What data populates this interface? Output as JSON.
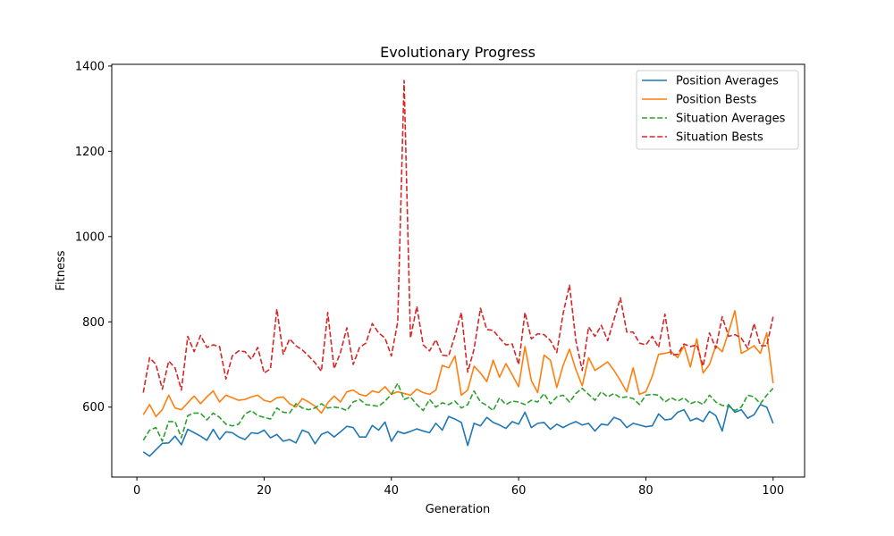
{
  "chart_data": {
    "type": "line",
    "title": "Evolutionary Progress",
    "xlabel": "Generation",
    "ylabel": "Fitness",
    "xlim": [
      -3.95,
      104.95
    ],
    "ylim": [
      436,
      1404
    ],
    "xticks": [
      0,
      20,
      40,
      60,
      80,
      100
    ],
    "yticks": [
      600,
      800,
      1000,
      1200,
      1400
    ],
    "xtick_labels": [
      "0",
      "20",
      "40",
      "60",
      "80",
      "100"
    ],
    "ytick_labels": [
      "600",
      "800",
      "1000",
      "1200",
      "1400"
    ],
    "grid": false,
    "legend_position": "top-right",
    "x": [
      1,
      2,
      3,
      4,
      5,
      6,
      7,
      8,
      9,
      10,
      11,
      12,
      13,
      14,
      15,
      16,
      17,
      18,
      19,
      20,
      21,
      22,
      23,
      24,
      25,
      26,
      27,
      28,
      29,
      30,
      31,
      32,
      33,
      34,
      35,
      36,
      37,
      38,
      39,
      40,
      41,
      42,
      43,
      44,
      45,
      46,
      47,
      48,
      49,
      50,
      51,
      52,
      53,
      54,
      55,
      56,
      57,
      58,
      59,
      60,
      61,
      62,
      63,
      64,
      65,
      66,
      67,
      68,
      69,
      70,
      71,
      72,
      73,
      74,
      75,
      76,
      77,
      78,
      79,
      80,
      81,
      82,
      83,
      84,
      85,
      86,
      87,
      88,
      89,
      90,
      91,
      92,
      93,
      94,
      95,
      96,
      97,
      98,
      99,
      100
    ],
    "series": [
      {
        "name": "Position Averages",
        "color": "#1f77b4",
        "dash": "solid",
        "values": [
          495,
          485,
          500,
          515,
          516,
          532,
          512,
          548,
          540,
          532,
          522,
          548,
          524,
          542,
          540,
          530,
          524,
          540,
          538,
          546,
          528,
          536,
          520,
          524,
          516,
          546,
          540,
          514,
          536,
          542,
          530,
          542,
          555,
          552,
          530,
          530,
          557,
          546,
          565,
          520,
          543,
          538,
          543,
          549,
          544,
          540,
          562,
          546,
          578,
          572,
          564,
          510,
          562,
          556,
          576,
          564,
          558,
          550,
          566,
          560,
          588,
          552,
          562,
          564,
          548,
          560,
          552,
          560,
          566,
          558,
          562,
          544,
          560,
          558,
          576,
          570,
          552,
          562,
          558,
          554,
          556,
          584,
          570,
          572,
          588,
          594,
          568,
          574,
          566,
          590,
          580,
          544,
          606,
          588,
          594,
          574,
          582,
          606,
          600,
          562
        ]
      },
      {
        "name": "Position Bests",
        "color": "#ff7f0e",
        "dash": "solid",
        "values": [
          582,
          606,
          578,
          594,
          628,
          598,
          594,
          610,
          626,
          608,
          624,
          638,
          612,
          628,
          622,
          616,
          618,
          624,
          628,
          616,
          612,
          622,
          624,
          608,
          600,
          620,
          612,
          602,
          586,
          610,
          626,
          612,
          636,
          640,
          630,
          626,
          638,
          634,
          648,
          630,
          636,
          632,
          628,
          642,
          634,
          630,
          640,
          698,
          692,
          720,
          628,
          640,
          696,
          680,
          660,
          710,
          670,
          702,
          676,
          648,
          742,
          662,
          634,
          722,
          710,
          646,
          698,
          736,
          688,
          650,
          716,
          686,
          696,
          706,
          686,
          662,
          636,
          692,
          630,
          636,
          672,
          724,
          726,
          730,
          716,
          744,
          694,
          760,
          680,
          700,
          744,
          730,
          776,
          826,
          726,
          734,
          744,
          726,
          774,
          656
        ]
      },
      {
        "name": "Situation Averages",
        "color": "#2ca02c",
        "dash": "dashed",
        "values": [
          522,
          546,
          552,
          520,
          566,
          566,
          528,
          580,
          586,
          586,
          570,
          586,
          576,
          560,
          556,
          560,
          584,
          592,
          580,
          576,
          572,
          598,
          588,
          586,
          608,
          598,
          594,
          598,
          608,
          598,
          600,
          598,
          592,
          612,
          618,
          606,
          604,
          602,
          614,
          630,
          656,
          618,
          624,
          606,
          592,
          618,
          600,
          610,
          606,
          614,
          598,
          606,
          638,
          612,
          604,
          592,
          622,
          606,
          614,
          612,
          606,
          616,
          612,
          632,
          608,
          624,
          628,
          612,
          632,
          644,
          630,
          616,
          636,
          624,
          632,
          622,
          624,
          620,
          606,
          628,
          630,
          628,
          612,
          622,
          614,
          622,
          608,
          614,
          606,
          628,
          612,
          604,
          602,
          592,
          600,
          628,
          624,
          608,
          628,
          644
        ]
      },
      {
        "name": "Situation Bests",
        "color": "#d62728",
        "dash": "dashed",
        "values": [
          634,
          716,
          700,
          642,
          708,
          692,
          640,
          766,
          730,
          768,
          740,
          746,
          742,
          666,
          720,
          732,
          730,
          712,
          740,
          680,
          690,
          830,
          724,
          760,
          744,
          734,
          720,
          704,
          684,
          822,
          690,
          728,
          786,
          700,
          740,
          750,
          796,
          774,
          762,
          720,
          800,
          1366,
          762,
          836,
          746,
          732,
          758,
          722,
          720,
          768,
          822,
          682,
          736,
          832,
          782,
          780,
          762,
          746,
          748,
          700,
          822,
          760,
          772,
          770,
          756,
          728,
          820,
          886,
          756,
          686,
          788,
          766,
          792,
          756,
          806,
          856,
          776,
          776,
          750,
          746,
          766,
          740,
          818,
          722,
          724,
          748,
          742,
          746,
          696,
          774,
          738,
          812,
          766,
          770,
          762,
          738,
          796,
          744,
          744,
          812
        ]
      }
    ]
  }
}
